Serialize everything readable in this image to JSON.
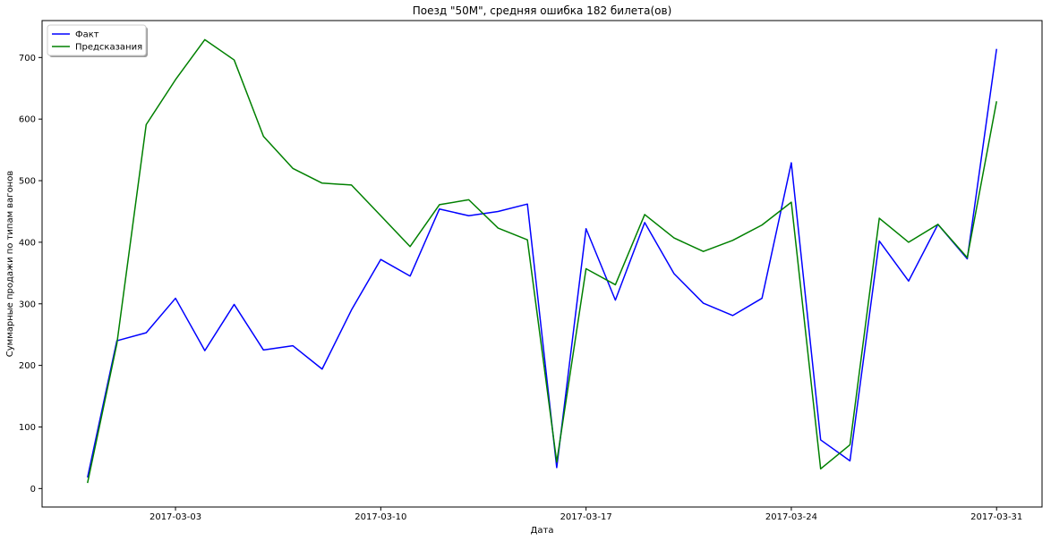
{
  "chart_data": {
    "type": "line",
    "title": "Поезд \"50М\", средняя ошибка 182 билета(ов)",
    "xlabel": "Дата",
    "ylabel": "Суммарные продажи по типам вагонов",
    "x": [
      "2017-02-28",
      "2017-03-01",
      "2017-03-02",
      "2017-03-03",
      "2017-03-04",
      "2017-03-05",
      "2017-03-06",
      "2017-03-07",
      "2017-03-08",
      "2017-03-09",
      "2017-03-10",
      "2017-03-11",
      "2017-03-12",
      "2017-03-13",
      "2017-03-14",
      "2017-03-15",
      "2017-03-16",
      "2017-03-17",
      "2017-03-18",
      "2017-03-19",
      "2017-03-20",
      "2017-03-21",
      "2017-03-22",
      "2017-03-23",
      "2017-03-24",
      "2017-03-25",
      "2017-03-26",
      "2017-03-27",
      "2017-03-28",
      "2017-03-29",
      "2017-03-30",
      "2017-03-31"
    ],
    "xticks": [
      "2017-03-03",
      "2017-03-10",
      "2017-03-17",
      "2017-03-24",
      "2017-03-31"
    ],
    "ylim": [
      -30,
      760
    ],
    "yticks": [
      0,
      100,
      200,
      300,
      400,
      500,
      600,
      700
    ],
    "legend_position": "top-left",
    "grid": false,
    "series": [
      {
        "name": "Факт",
        "color": "#0000ff",
        "values": [
          18,
          240,
          253,
          309,
          224,
          299,
          225,
          232,
          194,
          290,
          372,
          345,
          454,
          443,
          450,
          462,
          34,
          422,
          306,
          432,
          349,
          301,
          281,
          309,
          529,
          79,
          45,
          402,
          337,
          429,
          373,
          714
        ]
      },
      {
        "name": "Предсказания",
        "color": "#008000",
        "values": [
          9,
          235,
          591,
          664,
          729,
          696,
          572,
          520,
          496,
          493,
          443,
          393,
          461,
          469,
          423,
          404,
          43,
          357,
          331,
          445,
          407,
          385,
          403,
          428,
          465,
          32,
          71,
          439,
          400,
          429,
          375,
          629
        ]
      }
    ]
  }
}
